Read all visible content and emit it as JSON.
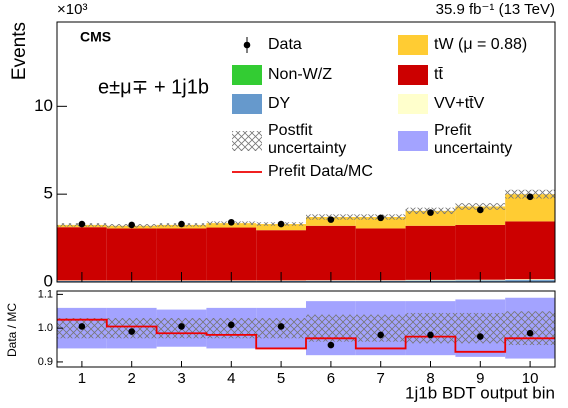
{
  "chart_data": [
    {
      "type": "stacked_step",
      "experiment": "CMS",
      "channel": "e±μ∓ + 1j1b",
      "lumi": "35.9 fb⁻¹ (13 TeV)",
      "y_label": "Events",
      "y_multiplier": "×10³",
      "xlim": [
        0.5,
        10.5
      ],
      "xticks": [
        1,
        2,
        3,
        4,
        5,
        6,
        7,
        8,
        9,
        10
      ],
      "ylim": [
        0,
        14.8
      ],
      "yticks": [
        0,
        5,
        10
      ],
      "series": [
        {
          "name": "Non-W/Z",
          "color": "#33cc33",
          "values": [
            0.01,
            0.01,
            0.01,
            0.01,
            0.01,
            0.01,
            0.01,
            0.01,
            0.01,
            0.01
          ]
        },
        {
          "name": "DY",
          "color": "#6699cc",
          "values": [
            0.05,
            0.05,
            0.05,
            0.05,
            0.05,
            0.06,
            0.06,
            0.07,
            0.08,
            0.1
          ]
        },
        {
          "name": "VV+tt̄V",
          "color": "#ffffcc",
          "values": [
            0.03,
            0.03,
            0.03,
            0.03,
            0.03,
            0.03,
            0.03,
            0.04,
            0.04,
            0.05
          ]
        },
        {
          "name": "tt̄",
          "color": "#cc0000",
          "values": [
            3.03,
            2.96,
            2.96,
            3.01,
            2.86,
            3.1,
            2.95,
            3.08,
            3.12,
            3.29
          ]
        },
        {
          "name": "tW (μ = 0.88)",
          "color": "#ffcc33",
          "values": [
            0.13,
            0.15,
            0.2,
            0.25,
            0.35,
            0.5,
            0.65,
            0.85,
            1.05,
            1.55
          ]
        }
      ],
      "data": {
        "name": "Data",
        "color": "#000000",
        "values": [
          3.3,
          3.25,
          3.3,
          3.4,
          3.3,
          3.55,
          3.65,
          3.95,
          4.1,
          4.85
        ]
      },
      "band": {
        "color": "#888888",
        "values": [
          0.1,
          0.1,
          0.1,
          0.1,
          0.1,
          0.15,
          0.15,
          0.18,
          0.19,
          0.25
        ]
      }
    },
    {
      "type": "ratio",
      "y_label": "Data / MC",
      "x_label": "1j1b BDT output bin",
      "xlim": [
        0.5,
        10.5
      ],
      "xticks": [
        1,
        2,
        3,
        4,
        5,
        6,
        7,
        8,
        9,
        10
      ],
      "ylim": [
        0.885,
        1.11
      ],
      "yticks": [
        {
          "value": 0.9,
          "label": "0.9"
        },
        {
          "value": 1,
          "label": "1.0"
        },
        {
          "value": 1.1,
          "label": "1.1"
        }
      ],
      "prefit_band": {
        "name": "Prefit uncertainty",
        "color": "#a3a3ff",
        "lower": [
          0.94,
          0.94,
          0.945,
          0.94,
          0.94,
          0.92,
          0.92,
          0.92,
          0.915,
          0.91
        ],
        "upper": [
          1.06,
          1.06,
          1.055,
          1.06,
          1.06,
          1.08,
          1.08,
          1.08,
          1.085,
          1.09
        ]
      },
      "postfit_band": {
        "name": "Postfit uncertainty",
        "color": "#888888",
        "lower": [
          0.97,
          0.97,
          0.97,
          0.97,
          0.97,
          0.96,
          0.96,
          0.955,
          0.955,
          0.95
        ],
        "upper": [
          1.03,
          1.03,
          1.03,
          1.03,
          1.03,
          1.04,
          1.04,
          1.045,
          1.045,
          1.05
        ]
      },
      "prefit_ratio": {
        "name": "Prefit Data/MC",
        "color": "#ee0000",
        "values": [
          1.025,
          1.005,
          0.985,
          0.98,
          0.94,
          0.97,
          0.94,
          0.975,
          0.93,
          0.97
        ]
      },
      "data": {
        "color": "#000000",
        "values": [
          1.005,
          0.99,
          1.005,
          1.01,
          1.005,
          0.95,
          0.98,
          0.98,
          0.975,
          0.985
        ]
      }
    }
  ]
}
